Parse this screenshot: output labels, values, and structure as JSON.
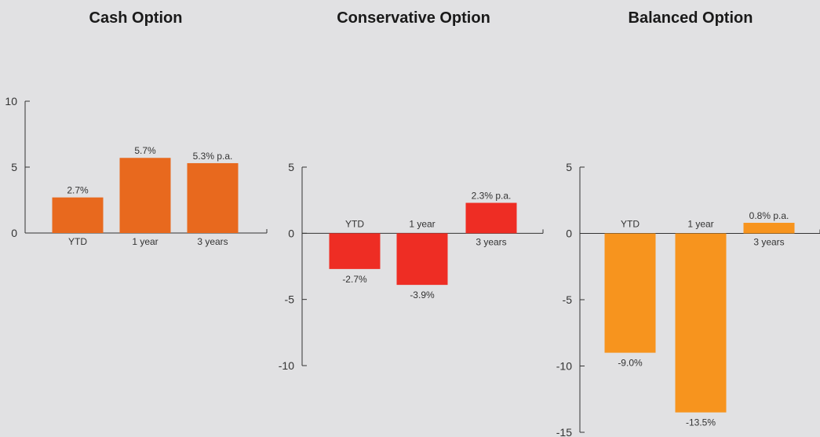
{
  "chart_data": [
    {
      "type": "bar",
      "title": "Cash Option",
      "categories": [
        "YTD",
        "1 year",
        "3 years"
      ],
      "values": [
        2.7,
        5.7,
        5.3
      ],
      "data_labels": [
        "2.7%",
        "5.7%",
        "5.3% p.a."
      ],
      "ylim": [
        0,
        10
      ],
      "yticks": [
        0,
        5,
        10
      ],
      "color": "#e8691e",
      "grid": false,
      "legend": "none"
    },
    {
      "type": "bar",
      "title": "Conservative Option",
      "categories": [
        "YTD",
        "1 year",
        "3 years"
      ],
      "values": [
        -2.7,
        -3.9,
        2.3
      ],
      "data_labels": [
        "-2.7%",
        "-3.9%",
        "2.3% p.a."
      ],
      "ylim": [
        -10,
        5
      ],
      "yticks": [
        -10,
        -5,
        0,
        5
      ],
      "color": "#ee2d24",
      "grid": false,
      "legend": "none"
    },
    {
      "type": "bar",
      "title": "Balanced Option",
      "categories": [
        "YTD",
        "1 year",
        "3 years"
      ],
      "values": [
        -9.0,
        -13.5,
        0.8
      ],
      "data_labels": [
        "-9.0%",
        "-13.5%",
        "0.8% p.a."
      ],
      "ylim": [
        -15,
        5
      ],
      "yticks": [
        -15,
        -10,
        -5,
        0,
        5
      ],
      "color": "#f7941e",
      "grid": false,
      "legend": "none"
    }
  ]
}
